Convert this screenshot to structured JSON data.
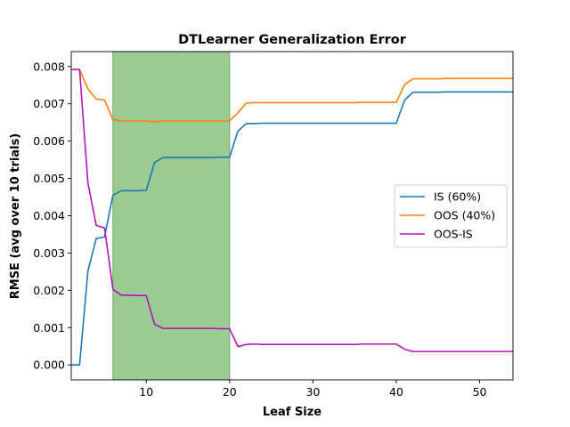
{
  "chart_data": {
    "type": "line",
    "title": "DTLearner Generalization Error",
    "xlabel": "Leaf Size",
    "ylabel": "RMSE (avg over 10 trials)",
    "xlim": [
      1,
      54
    ],
    "ylim": [
      -0.0004,
      0.0084
    ],
    "xticks": [
      10,
      20,
      30,
      40,
      50
    ],
    "xtick_labels": [
      "10",
      "20",
      "30",
      "40",
      "50"
    ],
    "yticks": [
      0.0,
      0.001,
      0.002,
      0.003,
      0.004,
      0.005,
      0.006,
      0.007,
      0.008
    ],
    "ytick_labels": [
      "0.000",
      "0.001",
      "0.002",
      "0.003",
      "0.004",
      "0.005",
      "0.006",
      "0.007",
      "0.008"
    ],
    "grid": false,
    "legend_position": "center-right",
    "highlight_span": {
      "x_start": 6,
      "x_end": 20,
      "color": "#9bcb93"
    },
    "x": [
      1,
      2,
      3,
      4,
      5,
      6,
      7,
      8,
      9,
      10,
      11,
      12,
      13,
      14,
      15,
      16,
      17,
      18,
      19,
      20,
      21,
      22,
      23,
      24,
      25,
      26,
      27,
      28,
      29,
      30,
      31,
      32,
      33,
      34,
      35,
      36,
      37,
      38,
      39,
      40,
      41,
      42,
      43,
      44,
      45,
      46,
      47,
      48,
      49,
      50,
      51,
      52,
      53,
      54
    ],
    "series": [
      {
        "name": "IS (60%)",
        "color": "#1f77b4",
        "values": [
          0.0,
          0.0,
          0.00252,
          0.00339,
          0.00343,
          0.00455,
          0.00467,
          0.00467,
          0.00467,
          0.00468,
          0.00543,
          0.00556,
          0.00556,
          0.00556,
          0.00556,
          0.00556,
          0.00556,
          0.00556,
          0.00557,
          0.00557,
          0.00627,
          0.00647,
          0.00647,
          0.00648,
          0.00648,
          0.00648,
          0.00648,
          0.00648,
          0.00648,
          0.00648,
          0.00648,
          0.00648,
          0.00648,
          0.00648,
          0.00648,
          0.00648,
          0.00648,
          0.00648,
          0.00648,
          0.00648,
          0.0071,
          0.00731,
          0.00731,
          0.00731,
          0.00731,
          0.00732,
          0.00732,
          0.00732,
          0.00732,
          0.00732,
          0.00732,
          0.00732,
          0.00732,
          0.00732
        ]
      },
      {
        "name": "OOS (40%)",
        "color": "#ff7f0e",
        "values": [
          0.00792,
          0.00792,
          0.0074,
          0.00713,
          0.0071,
          0.00658,
          0.00654,
          0.00654,
          0.00654,
          0.00654,
          0.00652,
          0.00654,
          0.00654,
          0.00654,
          0.00654,
          0.00654,
          0.00654,
          0.00654,
          0.00654,
          0.00654,
          0.00676,
          0.00702,
          0.00703,
          0.00703,
          0.00703,
          0.00703,
          0.00703,
          0.00703,
          0.00703,
          0.00703,
          0.00703,
          0.00703,
          0.00703,
          0.00703,
          0.00703,
          0.00704,
          0.00704,
          0.00704,
          0.00704,
          0.00704,
          0.00752,
          0.00767,
          0.00767,
          0.00767,
          0.00767,
          0.00768,
          0.00768,
          0.00768,
          0.00768,
          0.00768,
          0.00768,
          0.00768,
          0.00768,
          0.00768
        ]
      },
      {
        "name": "OOS-IS",
        "color": "#b313b8",
        "values": [
          0.00792,
          0.00792,
          0.00488,
          0.00374,
          0.00367,
          0.00203,
          0.00187,
          0.00187,
          0.00186,
          0.00186,
          0.00109,
          0.00098,
          0.00098,
          0.00098,
          0.00098,
          0.00098,
          0.00098,
          0.00098,
          0.00097,
          0.00097,
          0.00049,
          0.00055,
          0.00056,
          0.00055,
          0.00055,
          0.00055,
          0.00055,
          0.00055,
          0.00055,
          0.00055,
          0.00055,
          0.00055,
          0.00055,
          0.00055,
          0.00055,
          0.00056,
          0.00056,
          0.00056,
          0.00056,
          0.00056,
          0.00042,
          0.00036,
          0.00036,
          0.00036,
          0.00036,
          0.00036,
          0.00036,
          0.00036,
          0.00036,
          0.00036,
          0.00036,
          0.00036,
          0.00036,
          0.00036
        ]
      }
    ]
  }
}
